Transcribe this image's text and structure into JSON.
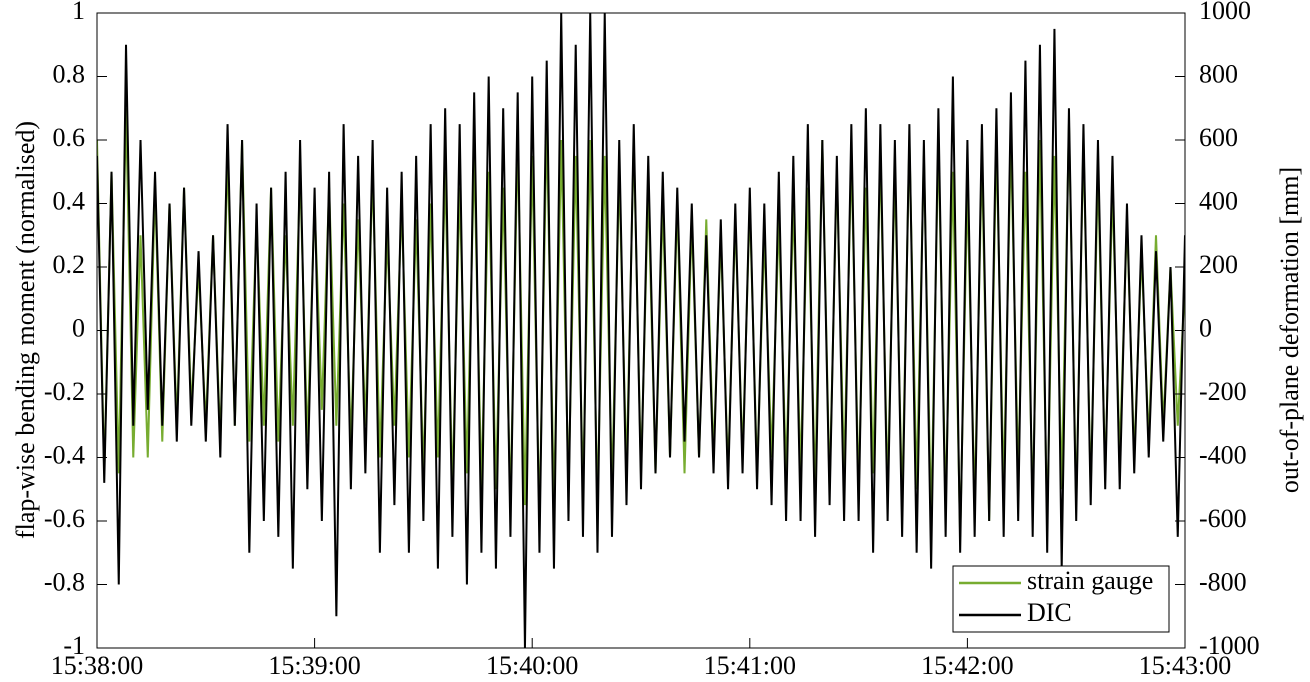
{
  "chart_data": {
    "type": "line",
    "y_label": "flap-wise bending moment (normalised)",
    "y2_label": "out-of-plane deformation [mm]",
    "x": [
      "15:38:00",
      "15:38:02",
      "15:38:04",
      "15:38:06",
      "15:38:08",
      "15:38:10",
      "15:38:12",
      "15:38:14",
      "15:38:16",
      "15:38:18",
      "15:38:20",
      "15:38:22",
      "15:38:24",
      "15:38:26",
      "15:38:28",
      "15:38:30",
      "15:38:32",
      "15:38:34",
      "15:38:36",
      "15:38:38",
      "15:38:40",
      "15:38:42",
      "15:38:44",
      "15:38:46",
      "15:38:48",
      "15:38:50",
      "15:38:52",
      "15:38:54",
      "15:38:56",
      "15:38:58",
      "15:39:00",
      "15:39:02",
      "15:39:04",
      "15:39:06",
      "15:39:08",
      "15:39:10",
      "15:39:12",
      "15:39:14",
      "15:39:16",
      "15:39:18",
      "15:39:20",
      "15:39:22",
      "15:39:24",
      "15:39:26",
      "15:39:28",
      "15:39:30",
      "15:39:32",
      "15:39:34",
      "15:39:36",
      "15:39:38",
      "15:39:40",
      "15:39:42",
      "15:39:44",
      "15:39:46",
      "15:39:48",
      "15:39:50",
      "15:39:52",
      "15:39:54",
      "15:39:56",
      "15:39:58",
      "15:40:00",
      "15:40:02",
      "15:40:04",
      "15:40:06",
      "15:40:08",
      "15:40:10",
      "15:40:12",
      "15:40:14",
      "15:40:16",
      "15:40:18",
      "15:40:20",
      "15:40:22",
      "15:40:24",
      "15:40:26",
      "15:40:28",
      "15:40:30",
      "15:40:32",
      "15:40:34",
      "15:40:36",
      "15:40:38",
      "15:40:40",
      "15:40:42",
      "15:40:44",
      "15:40:46",
      "15:40:48",
      "15:40:50",
      "15:40:52",
      "15:40:54",
      "15:40:56",
      "15:40:58",
      "15:41:00",
      "15:41:02",
      "15:41:04",
      "15:41:06",
      "15:41:08",
      "15:41:10",
      "15:41:12",
      "15:41:14",
      "15:41:16",
      "15:41:18",
      "15:41:20",
      "15:41:22",
      "15:41:24",
      "15:41:26",
      "15:41:28",
      "15:41:30",
      "15:41:32",
      "15:41:34",
      "15:41:36",
      "15:41:38",
      "15:41:40",
      "15:41:42",
      "15:41:44",
      "15:41:46",
      "15:41:48",
      "15:41:50",
      "15:41:52",
      "15:41:54",
      "15:41:56",
      "15:41:58",
      "15:42:00",
      "15:42:02",
      "15:42:04",
      "15:42:06",
      "15:42:08",
      "15:42:10",
      "15:42:12",
      "15:42:14",
      "15:42:16",
      "15:42:18",
      "15:42:20",
      "15:42:22",
      "15:42:24",
      "15:42:26",
      "15:42:28",
      "15:42:30",
      "15:42:32",
      "15:42:34",
      "15:42:36",
      "15:42:38",
      "15:42:40",
      "15:42:42",
      "15:42:44",
      "15:42:46",
      "15:42:48",
      "15:42:50",
      "15:42:52",
      "15:42:54",
      "15:42:56",
      "15:42:58",
      "15:43:00"
    ],
    "series": [
      {
        "name": "strain gauge",
        "color": "#77ac30",
        "values": [
          0.6,
          -0.45,
          0.5,
          -0.45,
          0.7,
          -0.4,
          0.3,
          -0.4,
          0.45,
          -0.35,
          0.4,
          -0.3,
          0.45,
          -0.25,
          0.2,
          -0.3,
          0.3,
          -0.35,
          0.55,
          -0.3,
          0.6,
          -0.35,
          0.35,
          -0.3,
          0.45,
          -0.35,
          0.3,
          -0.3,
          0.5,
          -0.35,
          0.4,
          -0.25,
          0.45,
          -0.3,
          0.4,
          -0.35,
          0.35,
          -0.3,
          0.5,
          -0.4,
          0.3,
          -0.3,
          0.4,
          -0.4,
          0.35,
          -0.45,
          0.4,
          -0.4,
          0.5,
          -0.5,
          0.45,
          -0.45,
          0.55,
          -0.5,
          0.5,
          -0.5,
          0.45,
          -0.55,
          0.6,
          -0.55,
          0.55,
          -0.6,
          0.65,
          -0.55,
          0.6,
          -0.5,
          0.55,
          -0.5,
          0.6,
          -0.55,
          0.55,
          -0.5,
          0.5,
          -0.45,
          0.6,
          -0.45,
          0.45,
          -0.45,
          0.4,
          -0.4,
          0.4,
          -0.45,
          0.35,
          -0.4,
          0.35,
          -0.4,
          0.3,
          -0.45,
          0.35,
          -0.4,
          0.4,
          -0.45,
          0.3,
          -0.4,
          0.35,
          -0.45,
          0.4,
          -0.45,
          0.45,
          -0.5,
          0.6,
          -0.5,
          0.5,
          -0.45,
          0.55,
          -0.5,
          0.45,
          -0.45,
          0.55,
          -0.5,
          0.5,
          -0.55,
          0.6,
          -0.5,
          0.55,
          -0.6,
          0.6,
          -0.55,
          0.5,
          -0.65,
          0.45,
          -0.55,
          0.55,
          -0.6,
          0.6,
          -0.5,
          0.6,
          -0.45,
          0.5,
          -0.55,
          0.6,
          -0.6,
          0.55,
          -0.5,
          0.65,
          -0.55,
          0.6,
          -0.5,
          0.5,
          -0.45,
          0.45,
          -0.4,
          0.35,
          -0.4,
          0.25,
          -0.35,
          0.3,
          -0.3,
          0.2,
          -0.3,
          0.15
        ]
      },
      {
        "name": "DIC",
        "color": "#000000",
        "axis": "y2",
        "values": [
          550,
          -480,
          500,
          -800,
          900,
          -300,
          600,
          -250,
          500,
          -300,
          400,
          -350,
          450,
          -300,
          250,
          -350,
          300,
          -400,
          650,
          -300,
          600,
          -700,
          400,
          -600,
          450,
          -650,
          500,
          -750,
          600,
          -500,
          450,
          -600,
          500,
          -900,
          650,
          -500,
          550,
          -450,
          600,
          -700,
          450,
          -550,
          500,
          -700,
          550,
          -600,
          650,
          -750,
          700,
          -650,
          650,
          -800,
          750,
          -700,
          800,
          -750,
          700,
          -650,
          750,
          -1000,
          800,
          -700,
          850,
          -750,
          1000,
          -600,
          900,
          -650,
          1000,
          -700,
          1000,
          -650,
          600,
          -550,
          650,
          -500,
          550,
          -450,
          500,
          -400,
          450,
          -350,
          400,
          -400,
          300,
          -450,
          350,
          -500,
          400,
          -450,
          450,
          -500,
          400,
          -550,
          500,
          -600,
          550,
          -600,
          650,
          -650,
          600,
          -550,
          550,
          -600,
          650,
          -600,
          700,
          -700,
          650,
          -600,
          600,
          -650,
          650,
          -700,
          600,
          -750,
          700,
          -650,
          800,
          -700,
          600,
          -650,
          650,
          -600,
          700,
          -650,
          750,
          -600,
          850,
          -650,
          900,
          -700,
          950,
          -750,
          700,
          -600,
          650,
          -550,
          600,
          -500,
          550,
          -500,
          400,
          -450,
          300,
          -400,
          250,
          -350,
          200,
          -650,
          300
        ]
      }
    ],
    "xlim": [
      "15:38:00",
      "15:43:00"
    ],
    "xticks": [
      "15:38:00",
      "15:39:00",
      "15:40:00",
      "15:41:00",
      "15:42:00",
      "15:43:00"
    ],
    "ylim": [
      -1,
      1
    ],
    "yticks": [
      -1,
      -0.8,
      -0.6,
      -0.4,
      -0.2,
      0,
      0.2,
      0.4,
      0.6,
      0.8,
      1
    ],
    "y2lim": [
      -1000,
      1000
    ],
    "y2ticks": [
      -1000,
      -800,
      -600,
      -400,
      -200,
      0,
      200,
      400,
      600,
      800,
      1000
    ],
    "legend": "lower right"
  }
}
